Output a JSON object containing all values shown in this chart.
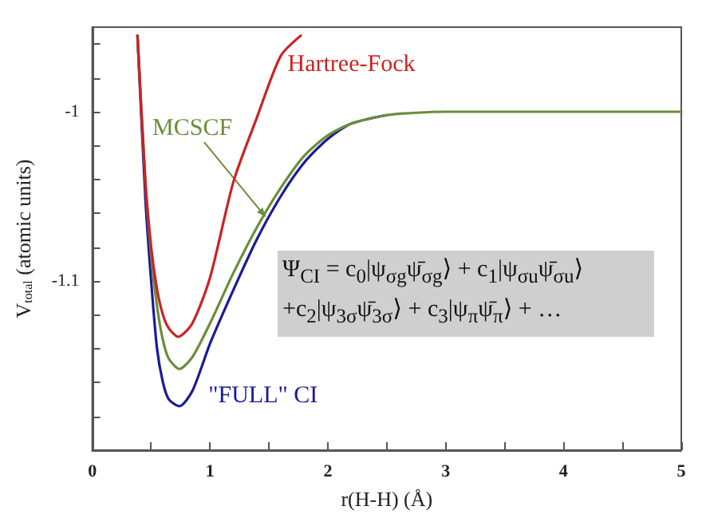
{
  "chart_data": {
    "type": "line",
    "xlabel": "r(H-H) (Å)",
    "ylabel": "V$_{total}$ (atomic units)",
    "xlim": [
      0,
      5
    ],
    "xticks": [
      0,
      {
        "value": 0.5,
        "label": null
      },
      1,
      {
        "value": 1.5,
        "label": null
      },
      2,
      {
        "value": 2.5,
        "label": null
      },
      3,
      {
        "value": 3.5,
        "label": null
      },
      4,
      {
        "value": 4.5,
        "label": null
      },
      5
    ],
    "ylim": [
      -1.2,
      -0.95
    ],
    "yticks": [
      {
        "value": -1.18,
        "label": null
      },
      {
        "value": -1.16,
        "label": null
      },
      {
        "value": -1.14,
        "label": null
      },
      {
        "value": -1.12,
        "label": null
      },
      -1.1,
      {
        "value": -1.08,
        "label": null
      },
      {
        "value": -1.06,
        "label": null
      },
      {
        "value": -1.04,
        "label": null
      },
      {
        "value": -1.02,
        "label": null
      },
      -1,
      {
        "value": -0.98,
        "label": null
      },
      {
        "value": -0.96,
        "label": null
      }
    ],
    "grid": false,
    "legend": false,
    "line_style": "solid",
    "series": [
      {
        "name": "Hartree-Fock",
        "color": "#cc2222",
        "x": [
          0.384,
          0.45,
          0.5,
          0.55,
          0.6,
          0.65,
          0.73,
          0.85,
          1.0,
          1.2,
          1.4,
          1.6,
          1.77
        ],
        "values": [
          -0.955,
          -1.04,
          -1.08,
          -1.105,
          -1.12,
          -1.128,
          -1.133,
          -1.125,
          -1.098,
          -1.041,
          -1.003,
          -0.967,
          -0.955
        ]
      },
      {
        "name": "MCSCF",
        "color": "#6b8e3a",
        "x": [
          0.384,
          0.45,
          0.5,
          0.55,
          0.6,
          0.65,
          0.74,
          0.85,
          1.0,
          1.2,
          1.4,
          1.6,
          1.8,
          2.0,
          2.2,
          2.5,
          3.0,
          5.0
        ],
        "values": [
          -0.955,
          -1.04,
          -1.085,
          -1.115,
          -1.135,
          -1.146,
          -1.152,
          -1.145,
          -1.125,
          -1.095,
          -1.068,
          -1.045,
          -1.026,
          -1.014,
          -1.007,
          -1.002,
          -1.0,
          -1.0
        ]
      },
      {
        "name": "\"FULL\" CI",
        "color": "#1a1a99",
        "x": [
          0.384,
          0.45,
          0.5,
          0.55,
          0.6,
          0.65,
          0.74,
          0.85,
          1.0,
          1.2,
          1.4,
          1.6,
          1.8,
          2.0,
          2.2,
          2.5
        ],
        "values": [
          -0.955,
          -1.05,
          -1.1,
          -1.14,
          -1.16,
          -1.17,
          -1.174,
          -1.165,
          -1.137,
          -1.105,
          -1.075,
          -1.05,
          -1.03,
          -1.016,
          -1.007,
          -1.002
        ]
      }
    ],
    "annotations": [
      "Ψ$_{CI}$ = c$_{0}$|ψ$_{σg}$ψ̄$_{σg}$⟩ + c$_{1}$|ψ$_{σu}$ψ̄$_{σu}$⟩",
      "+c$_{2}$|ψ$_{3σ}$ψ̄$_{3σ}$⟩ + c$_{3}$|ψ$_{π}$ψ̄$_{π}$⟩ + …"
    ]
  }
}
